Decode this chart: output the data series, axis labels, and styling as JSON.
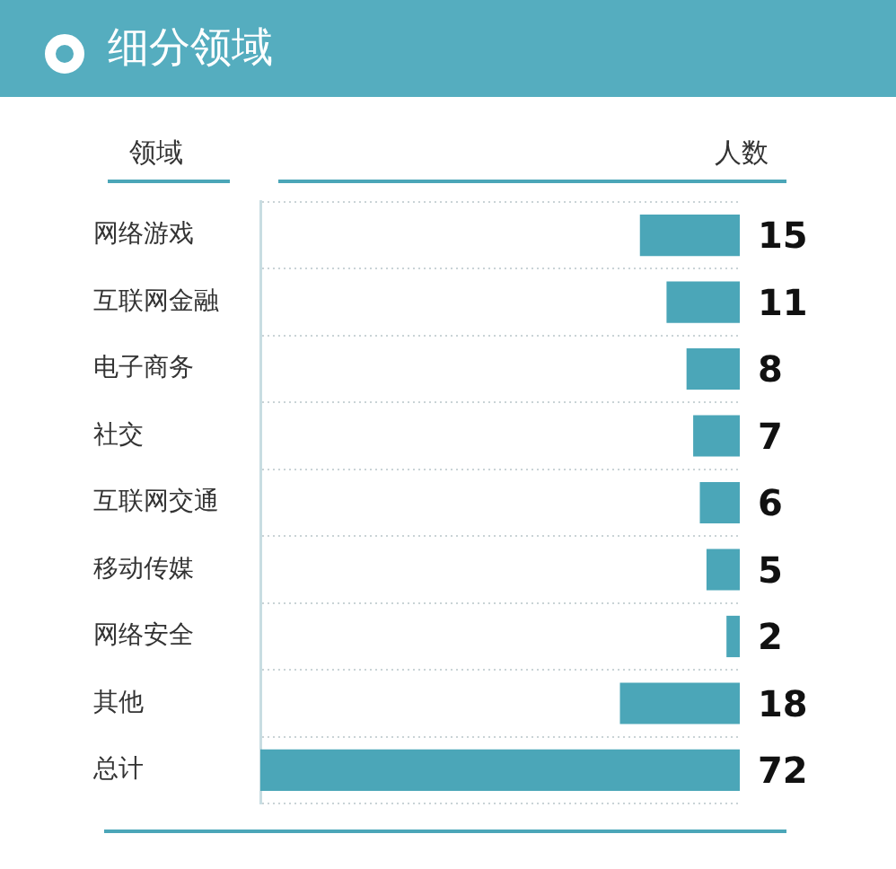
{
  "chart_data": {
    "type": "bar",
    "orientation": "horizontal",
    "title": "细分领域",
    "ylabel": "领域",
    "xlabel": "人数",
    "categories": [
      "网络游戏",
      "互联网金融",
      "电子商务",
      "社交",
      "互联网交通",
      "移动传媒",
      "网络安全",
      "其他",
      "总计"
    ],
    "values": [
      15,
      11,
      8,
      7,
      6,
      5,
      2,
      18,
      72
    ],
    "color": "#4ba6b8",
    "xlim": [
      72,
      0
    ],
    "tick_labels": "y",
    "data_labels": true,
    "grid": "y",
    "legend": false
  }
}
